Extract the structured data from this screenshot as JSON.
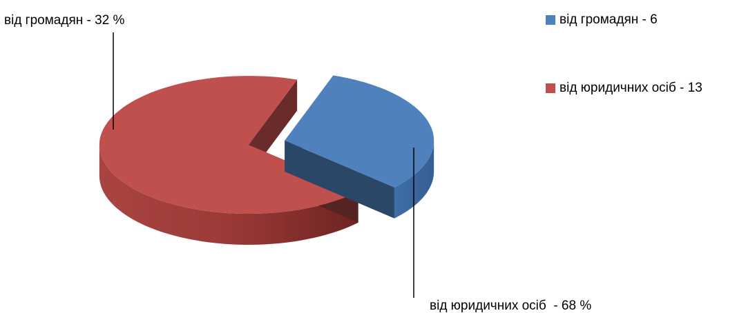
{
  "chart_data": {
    "type": "pie",
    "title": "",
    "categories": [
      "від громадян",
      "від юридичних осіб"
    ],
    "values": [
      6,
      13
    ],
    "percent_labels": [
      "від громадян - 32 %",
      "від юридичних осіб  - 68 %"
    ],
    "legend_labels": [
      "від громадян - 6",
      "від юридичних осіб - 13"
    ],
    "colors": [
      "#4f81bd",
      "#c0504d"
    ],
    "style": "3d-exploded",
    "legend_position": "right"
  }
}
